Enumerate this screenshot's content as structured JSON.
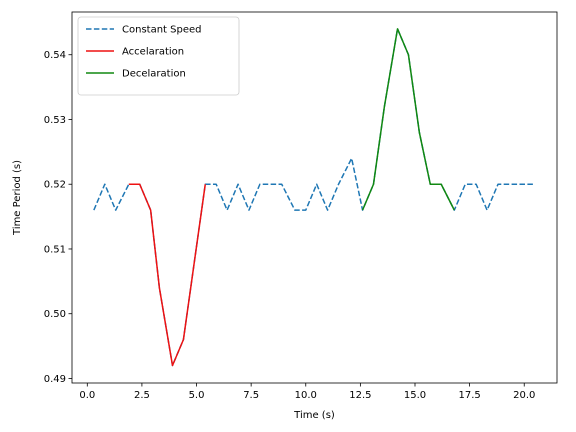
{
  "chart_data": {
    "type": "line",
    "xlabel": "Time (s)",
    "ylabel": "Time Period (s)",
    "xlim": [
      -0.7,
      21.5
    ],
    "ylim": [
      0.4893,
      0.5466
    ],
    "xticks": [
      0.0,
      2.5,
      5.0,
      7.5,
      10.0,
      12.5,
      15.0,
      17.5,
      20.0
    ],
    "xtick_labels": [
      "0.0",
      "2.5",
      "5.0",
      "7.5",
      "10.0",
      "12.5",
      "15.0",
      "17.5",
      "20.0"
    ],
    "yticks": [
      0.49,
      0.5,
      0.51,
      0.52,
      0.53,
      0.54
    ],
    "ytick_labels": [
      "0.49",
      "0.50",
      "0.51",
      "0.52",
      "0.53",
      "0.54"
    ],
    "grid": false,
    "legend_position": "top-left",
    "series": [
      {
        "name": "Constant Speed",
        "color": "#1f77b4",
        "dash": "dashed",
        "x": [
          0.3,
          0.8,
          1.3,
          1.9,
          2.4,
          2.9,
          3.3,
          3.9,
          4.4,
          4.9,
          5.4,
          5.9,
          6.4,
          6.9,
          7.4,
          7.9,
          8.4,
          8.9,
          9.5,
          10.0,
          10.5,
          11.0,
          11.5,
          12.1,
          12.6,
          13.1,
          13.6,
          14.2,
          14.7,
          15.2,
          15.7,
          16.2,
          16.8,
          17.3,
          17.8,
          18.3,
          18.8,
          19.4,
          19.9,
          20.4
        ],
        "y": [
          0.516,
          0.52,
          0.516,
          0.52,
          0.52,
          0.516,
          0.504,
          0.492,
          0.496,
          0.508,
          0.52,
          0.52,
          0.516,
          0.52,
          0.516,
          0.52,
          0.52,
          0.52,
          0.516,
          0.516,
          0.52,
          0.516,
          0.52,
          0.524,
          0.516,
          0.52,
          0.532,
          0.544,
          0.54,
          0.528,
          0.52,
          0.52,
          0.516,
          0.52,
          0.52,
          0.516,
          0.52,
          0.52,
          0.52,
          0.52
        ]
      },
      {
        "name": "Accelaration",
        "color": "#ee1111",
        "dash": "solid",
        "x": [
          1.9,
          2.4,
          2.9,
          3.3,
          3.9,
          4.4,
          4.9,
          5.4
        ],
        "y": [
          0.52,
          0.52,
          0.516,
          0.504,
          0.492,
          0.496,
          0.508,
          0.52
        ]
      },
      {
        "name": "Decelaration",
        "color": "#118811",
        "dash": "solid",
        "x": [
          12.6,
          13.1,
          13.6,
          14.2,
          14.7,
          15.2,
          15.7,
          16.2,
          16.8
        ],
        "y": [
          0.516,
          0.52,
          0.532,
          0.544,
          0.54,
          0.528,
          0.52,
          0.52,
          0.516
        ]
      }
    ]
  }
}
